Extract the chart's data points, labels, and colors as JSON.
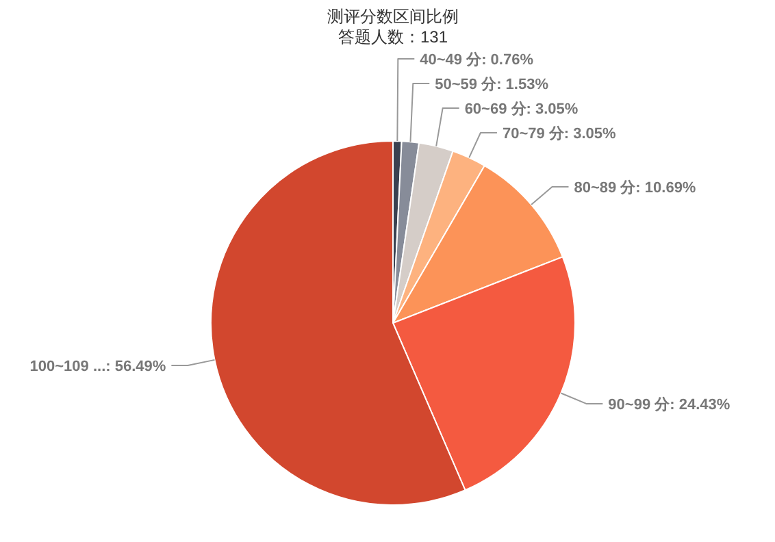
{
  "chart_data": {
    "type": "pie",
    "title": "测评分数区间比例",
    "subtitle": "答题人数：131",
    "categories": [
      "40~49 分",
      "50~59 分",
      "60~69 分",
      "70~79 分",
      "80~89 分",
      "90~99 分",
      "100~109 ..."
    ],
    "values": [
      0.76,
      1.53,
      3.05,
      3.05,
      10.69,
      24.43,
      56.49
    ],
    "value_labels": [
      "0.76%",
      "1.53%",
      "3.05%",
      "3.05%",
      "10.69%",
      "24.43%",
      "56.49%"
    ],
    "colors": [
      "#3a4150",
      "#878c99",
      "#d5cdc8",
      "#fdb27f",
      "#fc9358",
      "#f45a40",
      "#d2472e"
    ]
  }
}
